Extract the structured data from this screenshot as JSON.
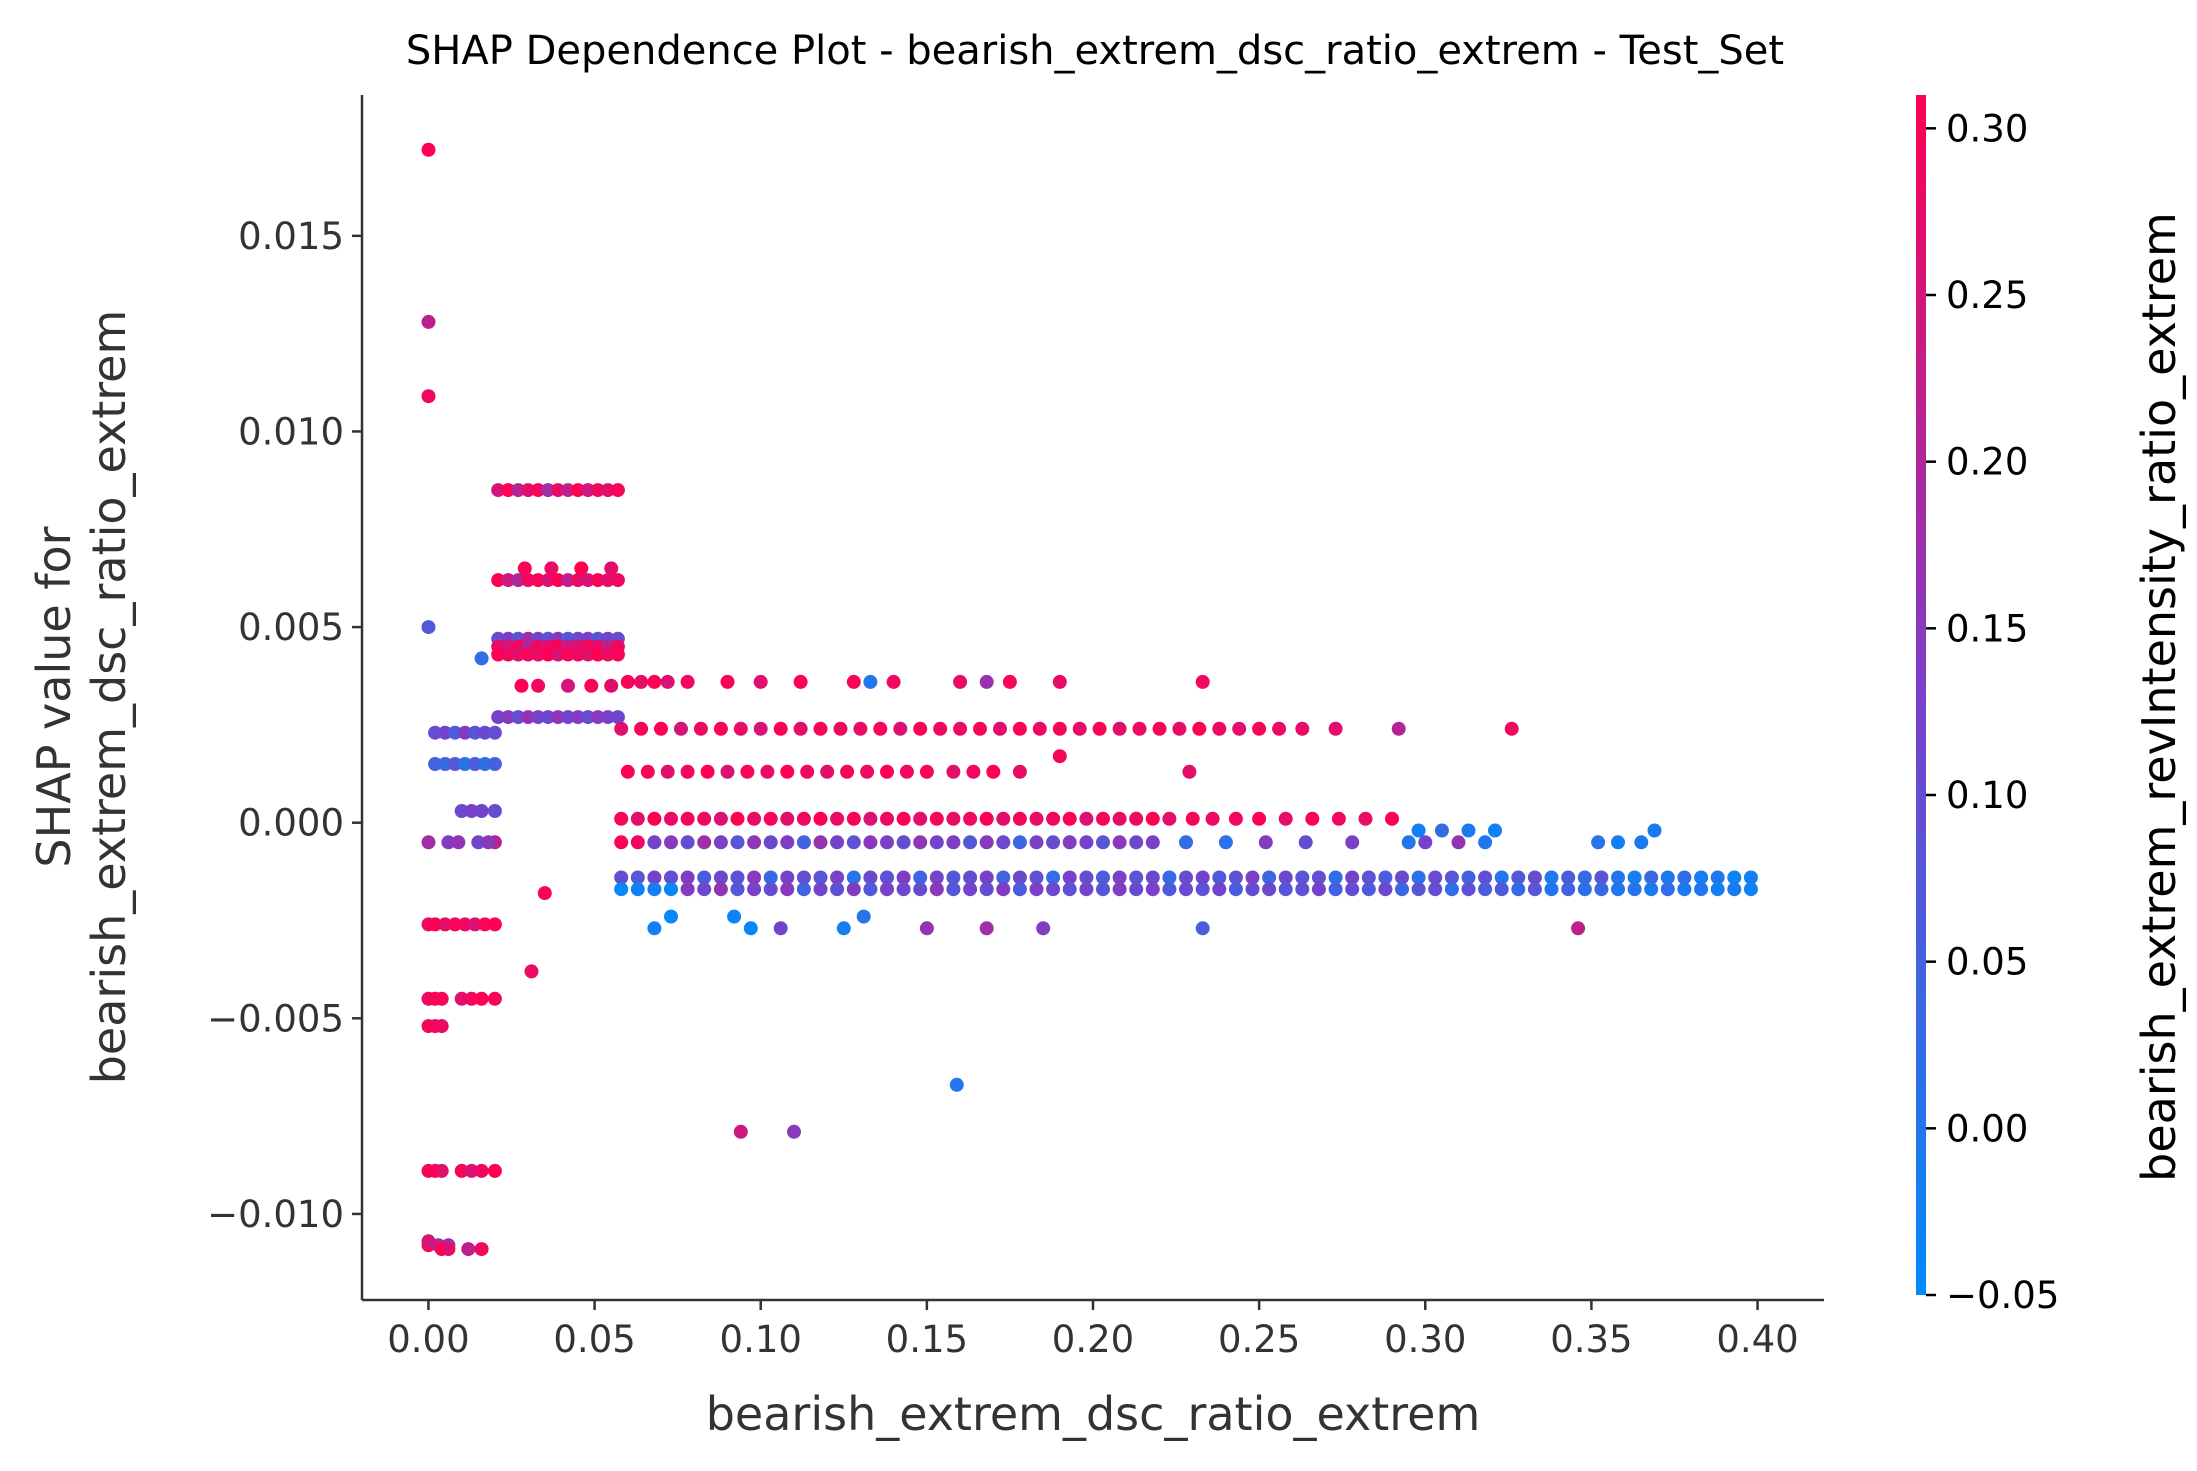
{
  "chart_data": {
    "type": "scatter",
    "title": "SHAP Dependence Plot - bearish_extrem_dsc_ratio_extrem - Test_Set",
    "xlabel": "bearish_extrem_dsc_ratio_extrem",
    "ylabel": [
      "SHAP value for",
      "bearish_extrem_dsc_ratio_extrem"
    ],
    "colorbar_label": "bearish_extrem_revIntensity_ratio_extrem",
    "xlim": [
      -0.02,
      0.42
    ],
    "ylim": [
      -0.0122,
      0.0186
    ],
    "clim": [
      -0.05,
      0.31
    ],
    "xticks": [
      0.0,
      0.05,
      0.1,
      0.15,
      0.2,
      0.25,
      0.3,
      0.35,
      0.4
    ],
    "xtick_labels": [
      "0.00",
      "0.05",
      "0.10",
      "0.15",
      "0.20",
      "0.25",
      "0.30",
      "0.35",
      "0.40"
    ],
    "yticks": [
      -0.01,
      -0.005,
      0.0,
      0.005,
      0.01,
      0.015
    ],
    "ytick_labels": [
      "−0.010",
      "−0.005",
      "0.000",
      "0.005",
      "0.010",
      "0.015"
    ],
    "cticks": [
      -0.05,
      0.0,
      0.05,
      0.1,
      0.15,
      0.2,
      0.25,
      0.3
    ],
    "ctick_labels": [
      "−0.05",
      "0.00",
      "0.05",
      "0.10",
      "0.15",
      "0.20",
      "0.25",
      "0.30"
    ],
    "colormap": [
      "#008bfb",
      "#ff0052"
    ],
    "grid": false,
    "points_x": [
      0.0,
      0.0,
      0.0,
      0.0,
      0.0,
      0.003,
      0.0,
      0.006,
      0.002,
      0.005,
      0.008,
      0.011,
      0.014,
      0.017,
      0.02,
      0.002,
      0.005,
      0.008,
      0.011,
      0.014,
      0.017,
      0.02,
      0.0,
      0.002,
      0.005,
      0.008,
      0.011,
      0.014,
      0.017,
      0.02,
      0.0,
      0.002,
      0.004,
      0.01,
      0.013,
      0.016,
      0.02,
      0.0,
      0.002,
      0.004,
      0.01,
      0.013,
      0.016,
      0.02,
      0.0,
      0.002,
      0.004,
      0.01,
      0.013,
      0.016,
      0.02,
      0.0,
      0.006,
      0.02,
      0.009,
      0.015,
      0.018,
      0.004,
      0.006,
      0.012,
      0.016,
      0.035,
      0.031,
      0.016,
      0.021,
      0.024,
      0.027,
      0.03,
      0.033,
      0.036,
      0.039,
      0.042,
      0.045,
      0.048,
      0.051,
      0.054,
      0.057,
      0.021,
      0.024,
      0.027,
      0.03,
      0.033,
      0.036,
      0.039,
      0.042,
      0.045,
      0.048,
      0.051,
      0.054,
      0.057,
      0.021,
      0.024,
      0.027,
      0.03,
      0.033,
      0.036,
      0.039,
      0.042,
      0.045,
      0.048,
      0.051,
      0.054,
      0.057,
      0.021,
      0.024,
      0.027,
      0.03,
      0.033,
      0.036,
      0.039,
      0.042,
      0.045,
      0.048,
      0.051,
      0.054,
      0.057,
      0.021,
      0.024,
      0.027,
      0.03,
      0.033,
      0.036,
      0.039,
      0.042,
      0.045,
      0.048,
      0.051,
      0.054,
      0.057,
      0.021,
      0.024,
      0.027,
      0.03,
      0.033,
      0.036,
      0.039,
      0.042,
      0.045,
      0.048,
      0.051,
      0.054,
      0.057,
      0.029,
      0.037,
      0.046,
      0.055,
      0.028,
      0.033,
      0.042,
      0.049,
      0.055,
      0.06,
      0.064,
      0.068,
      0.072,
      0.078,
      0.09,
      0.1,
      0.112,
      0.128,
      0.133,
      0.14,
      0.16,
      0.168,
      0.175,
      0.19,
      0.233,
      0.058,
      0.064,
      0.07,
      0.076,
      0.082,
      0.088,
      0.094,
      0.1,
      0.106,
      0.112,
      0.118,
      0.124,
      0.13,
      0.136,
      0.142,
      0.148,
      0.154,
      0.16,
      0.166,
      0.172,
      0.178,
      0.184,
      0.19,
      0.196,
      0.202,
      0.208,
      0.214,
      0.22,
      0.226,
      0.232,
      0.238,
      0.244,
      0.25,
      0.256,
      0.263,
      0.273,
      0.292,
      0.326,
      0.06,
      0.066,
      0.072,
      0.078,
      0.084,
      0.09,
      0.096,
      0.102,
      0.108,
      0.114,
      0.12,
      0.126,
      0.132,
      0.138,
      0.144,
      0.15,
      0.158,
      0.164,
      0.17,
      0.178,
      0.19,
      0.229,
      0.058,
      0.063,
      0.068,
      0.073,
      0.078,
      0.083,
      0.088,
      0.093,
      0.098,
      0.103,
      0.108,
      0.113,
      0.118,
      0.123,
      0.128,
      0.133,
      0.138,
      0.143,
      0.148,
      0.153,
      0.158,
      0.163,
      0.168,
      0.173,
      0.178,
      0.183,
      0.188,
      0.193,
      0.198,
      0.203,
      0.208,
      0.213,
      0.218,
      0.223,
      0.23,
      0.236,
      0.243,
      0.25,
      0.258,
      0.266,
      0.274,
      0.282,
      0.29,
      0.058,
      0.063,
      0.068,
      0.073,
      0.078,
      0.083,
      0.088,
      0.093,
      0.098,
      0.103,
      0.108,
      0.113,
      0.118,
      0.123,
      0.128,
      0.133,
      0.138,
      0.143,
      0.148,
      0.153,
      0.158,
      0.163,
      0.168,
      0.173,
      0.178,
      0.183,
      0.188,
      0.193,
      0.198,
      0.203,
      0.208,
      0.213,
      0.218,
      0.228,
      0.24,
      0.252,
      0.264,
      0.278,
      0.295,
      0.3,
      0.31,
      0.318,
      0.352,
      0.358,
      0.365,
      0.298,
      0.305,
      0.313,
      0.321,
      0.369,
      0.058,
      0.063,
      0.068,
      0.073,
      0.078,
      0.083,
      0.088,
      0.093,
      0.098,
      0.103,
      0.108,
      0.113,
      0.118,
      0.123,
      0.128,
      0.133,
      0.138,
      0.143,
      0.148,
      0.153,
      0.158,
      0.163,
      0.168,
      0.173,
      0.178,
      0.183,
      0.188,
      0.193,
      0.198,
      0.203,
      0.208,
      0.213,
      0.218,
      0.223,
      0.228,
      0.233,
      0.238,
      0.243,
      0.248,
      0.253,
      0.258,
      0.263,
      0.268,
      0.273,
      0.278,
      0.283,
      0.288,
      0.293,
      0.298,
      0.303,
      0.308,
      0.313,
      0.318,
      0.323,
      0.328,
      0.333,
      0.338,
      0.343,
      0.348,
      0.353,
      0.358,
      0.363,
      0.368,
      0.373,
      0.378,
      0.383,
      0.388,
      0.393,
      0.398,
      0.058,
      0.063,
      0.068,
      0.073,
      0.078,
      0.083,
      0.088,
      0.093,
      0.098,
      0.103,
      0.108,
      0.113,
      0.118,
      0.123,
      0.128,
      0.133,
      0.138,
      0.143,
      0.148,
      0.153,
      0.158,
      0.163,
      0.168,
      0.173,
      0.178,
      0.183,
      0.188,
      0.193,
      0.198,
      0.203,
      0.208,
      0.213,
      0.218,
      0.223,
      0.228,
      0.233,
      0.238,
      0.243,
      0.248,
      0.253,
      0.258,
      0.263,
      0.268,
      0.273,
      0.278,
      0.283,
      0.288,
      0.293,
      0.298,
      0.303,
      0.308,
      0.313,
      0.318,
      0.323,
      0.328,
      0.333,
      0.338,
      0.343,
      0.348,
      0.353,
      0.358,
      0.363,
      0.368,
      0.373,
      0.378,
      0.383,
      0.388,
      0.393,
      0.398,
      0.068,
      0.073,
      0.092,
      0.097,
      0.106,
      0.125,
      0.131,
      0.15,
      0.168,
      0.185,
      0.233,
      0.346,
      0.159,
      0.094,
      0.11
    ],
    "points_y": [
      0.0172,
      0.0128,
      0.0109,
      0.005,
      -0.0108,
      -0.0108,
      -0.0107,
      -0.0108,
      0.0023,
      0.0023,
      0.0023,
      0.0023,
      0.0023,
      0.0023,
      0.0023,
      0.0015,
      0.0015,
      0.0015,
      0.0015,
      0.0015,
      0.0015,
      0.0015,
      -0.0026,
      -0.0026,
      -0.0026,
      -0.0026,
      -0.0026,
      -0.0026,
      -0.0026,
      -0.0026,
      -0.0045,
      -0.0045,
      -0.0045,
      -0.0045,
      -0.0045,
      -0.0045,
      -0.0045,
      -0.0089,
      -0.0089,
      -0.0089,
      -0.0089,
      -0.0089,
      -0.0089,
      -0.0089,
      -0.0052,
      -0.0052,
      -0.0052,
      0.0003,
      0.0003,
      0.0003,
      0.0003,
      -0.0005,
      -0.0005,
      -0.0005,
      -0.0005,
      -0.0005,
      -0.0005,
      -0.0109,
      -0.0109,
      -0.0109,
      -0.0109,
      -0.0018,
      -0.0038,
      0.0042,
      0.0085,
      0.0085,
      0.0085,
      0.0085,
      0.0085,
      0.0085,
      0.0085,
      0.0085,
      0.0085,
      0.0085,
      0.0085,
      0.0085,
      0.0085,
      0.0062,
      0.0062,
      0.0062,
      0.0062,
      0.0062,
      0.0062,
      0.0062,
      0.0062,
      0.0062,
      0.0062,
      0.0062,
      0.0062,
      0.0062,
      0.0047,
      0.0047,
      0.0047,
      0.0047,
      0.0047,
      0.0047,
      0.0047,
      0.0047,
      0.0047,
      0.0047,
      0.0047,
      0.0047,
      0.0047,
      0.0045,
      0.0045,
      0.0045,
      0.0045,
      0.0045,
      0.0045,
      0.0045,
      0.0045,
      0.0045,
      0.0045,
      0.0045,
      0.0045,
      0.0045,
      0.0043,
      0.0043,
      0.0043,
      0.0043,
      0.0043,
      0.0043,
      0.0043,
      0.0043,
      0.0043,
      0.0043,
      0.0043,
      0.0043,
      0.0043,
      0.0027,
      0.0027,
      0.0027,
      0.0027,
      0.0027,
      0.0027,
      0.0027,
      0.0027,
      0.0027,
      0.0027,
      0.0027,
      0.0027,
      0.0027,
      0.0065,
      0.0065,
      0.0065,
      0.0065,
      0.0035,
      0.0035,
      0.0035,
      0.0035,
      0.0035,
      0.0036,
      0.0036,
      0.0036,
      0.0036,
      0.0036,
      0.0036,
      0.0036,
      0.0036,
      0.0036,
      0.0036,
      0.0036,
      0.0036,
      0.0036,
      0.0036,
      0.0036,
      0.0036,
      0.0024,
      0.0024,
      0.0024,
      0.0024,
      0.0024,
      0.0024,
      0.0024,
      0.0024,
      0.0024,
      0.0024,
      0.0024,
      0.0024,
      0.0024,
      0.0024,
      0.0024,
      0.0024,
      0.0024,
      0.0024,
      0.0024,
      0.0024,
      0.0024,
      0.0024,
      0.0024,
      0.0024,
      0.0024,
      0.0024,
      0.0024,
      0.0024,
      0.0024,
      0.0024,
      0.0024,
      0.0024,
      0.0024,
      0.0024,
      0.0024,
      0.0024,
      0.0024,
      0.0024,
      0.0013,
      0.0013,
      0.0013,
      0.0013,
      0.0013,
      0.0013,
      0.0013,
      0.0013,
      0.0013,
      0.0013,
      0.0013,
      0.0013,
      0.0013,
      0.0013,
      0.0013,
      0.0013,
      0.0013,
      0.0013,
      0.0013,
      0.0013,
      0.0017,
      0.0013,
      0.0001,
      0.0001,
      0.0001,
      0.0001,
      0.0001,
      0.0001,
      0.0001,
      0.0001,
      0.0001,
      0.0001,
      0.0001,
      0.0001,
      0.0001,
      0.0001,
      0.0001,
      0.0001,
      0.0001,
      0.0001,
      0.0001,
      0.0001,
      0.0001,
      0.0001,
      0.0001,
      0.0001,
      0.0001,
      0.0001,
      0.0001,
      0.0001,
      0.0001,
      0.0001,
      0.0001,
      0.0001,
      0.0001,
      0.0001,
      0.0001,
      0.0001,
      0.0001,
      0.0001,
      0.0001,
      0.0001,
      0.0001,
      0.0001,
      0.0001,
      -0.0005,
      -0.0005,
      -0.0005,
      -0.0005,
      -0.0005,
      -0.0005,
      -0.0005,
      -0.0005,
      -0.0005,
      -0.0005,
      -0.0005,
      -0.0005,
      -0.0005,
      -0.0005,
      -0.0005,
      -0.0005,
      -0.0005,
      -0.0005,
      -0.0005,
      -0.0005,
      -0.0005,
      -0.0005,
      -0.0005,
      -0.0005,
      -0.0005,
      -0.0005,
      -0.0005,
      -0.0005,
      -0.0005,
      -0.0005,
      -0.0005,
      -0.0005,
      -0.0005,
      -0.0005,
      -0.0005,
      -0.0005,
      -0.0005,
      -0.0005,
      -0.0005,
      -0.0005,
      -0.0005,
      -0.0005,
      -0.0005,
      -0.0005,
      -0.0005,
      -0.0002,
      -0.0002,
      -0.0002,
      -0.0002,
      -0.0002,
      -0.0014,
      -0.0014,
      -0.0014,
      -0.0014,
      -0.0014,
      -0.0014,
      -0.0014,
      -0.0014,
      -0.0014,
      -0.0014,
      -0.0014,
      -0.0014,
      -0.0014,
      -0.0014,
      -0.0014,
      -0.0014,
      -0.0014,
      -0.0014,
      -0.0014,
      -0.0014,
      -0.0014,
      -0.0014,
      -0.0014,
      -0.0014,
      -0.0014,
      -0.0014,
      -0.0014,
      -0.0014,
      -0.0014,
      -0.0014,
      -0.0014,
      -0.0014,
      -0.0014,
      -0.0014,
      -0.0014,
      -0.0014,
      -0.0014,
      -0.0014,
      -0.0014,
      -0.0014,
      -0.0014,
      -0.0014,
      -0.0014,
      -0.0014,
      -0.0014,
      -0.0014,
      -0.0014,
      -0.0014,
      -0.0014,
      -0.0014,
      -0.0014,
      -0.0014,
      -0.0014,
      -0.0014,
      -0.0014,
      -0.0014,
      -0.0014,
      -0.0014,
      -0.0014,
      -0.0014,
      -0.0014,
      -0.0014,
      -0.0014,
      -0.0014,
      -0.0014,
      -0.0014,
      -0.0014,
      -0.0014,
      -0.0014,
      -0.0017,
      -0.0017,
      -0.0017,
      -0.0017,
      -0.0017,
      -0.0017,
      -0.0017,
      -0.0017,
      -0.0017,
      -0.0017,
      -0.0017,
      -0.0017,
      -0.0017,
      -0.0017,
      -0.0017,
      -0.0017,
      -0.0017,
      -0.0017,
      -0.0017,
      -0.0017,
      -0.0017,
      -0.0017,
      -0.0017,
      -0.0017,
      -0.0017,
      -0.0017,
      -0.0017,
      -0.0017,
      -0.0017,
      -0.0017,
      -0.0017,
      -0.0017,
      -0.0017,
      -0.0017,
      -0.0017,
      -0.0017,
      -0.0017,
      -0.0017,
      -0.0017,
      -0.0017,
      -0.0017,
      -0.0017,
      -0.0017,
      -0.0017,
      -0.0017,
      -0.0017,
      -0.0017,
      -0.0017,
      -0.0017,
      -0.0017,
      -0.0017,
      -0.0017,
      -0.0017,
      -0.0017,
      -0.0017,
      -0.0017,
      -0.0017,
      -0.0017,
      -0.0017,
      -0.0017,
      -0.0017,
      -0.0017,
      -0.0017,
      -0.0017,
      -0.0017,
      -0.0017,
      -0.0017,
      -0.0017,
      -0.0017,
      -0.0027,
      -0.0024,
      -0.0024,
      -0.0027,
      -0.0027,
      -0.0027,
      -0.0024,
      -0.0027,
      -0.0027,
      -0.0027,
      -0.0027,
      -0.0027,
      -0.0067,
      -0.0079,
      -0.0079
    ],
    "points_c": [
      0.31,
      0.22,
      0.29,
      0.07,
      0.3,
      0.2,
      0.25,
      0.18,
      0.1,
      0.12,
      0.06,
      0.14,
      0.08,
      0.11,
      0.1,
      0.05,
      0.03,
      0.08,
      0.01,
      0.06,
      0.02,
      0.05,
      0.28,
      0.31,
      0.27,
      0.3,
      0.29,
      0.26,
      0.3,
      0.31,
      0.28,
      0.31,
      0.3,
      0.27,
      0.29,
      0.31,
      0.3,
      0.29,
      0.31,
      0.27,
      0.3,
      0.26,
      0.29,
      0.31,
      0.29,
      0.3,
      0.28,
      0.11,
      0.13,
      0.12,
      0.1,
      0.18,
      0.14,
      0.21,
      0.16,
      0.12,
      0.15,
      0.31,
      0.27,
      0.22,
      0.29,
      0.3,
      0.28,
      0.02,
      0.25,
      0.31,
      0.21,
      0.27,
      0.3,
      0.18,
      0.28,
      0.22,
      0.31,
      0.24,
      0.29,
      0.27,
      0.3,
      0.31,
      0.24,
      0.2,
      0.29,
      0.3,
      0.26,
      0.31,
      0.22,
      0.28,
      0.25,
      0.3,
      0.27,
      0.29,
      0.1,
      0.14,
      0.08,
      0.18,
      0.12,
      0.09,
      0.15,
      0.07,
      0.11,
      0.13,
      0.08,
      0.12,
      0.1,
      0.28,
      0.25,
      0.3,
      0.21,
      0.29,
      0.27,
      0.31,
      0.24,
      0.26,
      0.3,
      0.28,
      0.22,
      0.29,
      0.31,
      0.29,
      0.27,
      0.3,
      0.28,
      0.31,
      0.26,
      0.3,
      0.29,
      0.27,
      0.31,
      0.28,
      0.3,
      0.12,
      0.15,
      0.1,
      0.17,
      0.13,
      0.11,
      0.16,
      0.12,
      0.14,
      0.1,
      0.15,
      0.13,
      0.11,
      0.3,
      0.28,
      0.31,
      0.27,
      0.31,
      0.29,
      0.25,
      0.3,
      0.27,
      0.3,
      0.28,
      0.31,
      0.26,
      0.29,
      0.3,
      0.27,
      0.31,
      0.3,
      0.0,
      0.29,
      0.28,
      0.17,
      0.3,
      0.28,
      0.29,
      0.27,
      0.3,
      0.31,
      0.25,
      0.29,
      0.3,
      0.28,
      0.26,
      0.31,
      0.27,
      0.3,
      0.29,
      0.28,
      0.3,
      0.26,
      0.31,
      0.29,
      0.28,
      0.3,
      0.27,
      0.31,
      0.29,
      0.3,
      0.28,
      0.31,
      0.27,
      0.29,
      0.3,
      0.28,
      0.31,
      0.29,
      0.27,
      0.3,
      0.29,
      0.28,
      0.27,
      0.21,
      0.29,
      0.31,
      0.3,
      0.27,
      0.29,
      0.31,
      0.26,
      0.3,
      0.28,
      0.31,
      0.29,
      0.27,
      0.3,
      0.28,
      0.31,
      0.29,
      0.3,
      0.27,
      0.29,
      0.31,
      0.28,
      0.3,
      0.27,
      0.3,
      0.27,
      0.31,
      0.28,
      0.3,
      0.29,
      0.26,
      0.31,
      0.28,
      0.3,
      0.27,
      0.29,
      0.31,
      0.28,
      0.3,
      0.26,
      0.29,
      0.31,
      0.27,
      0.3,
      0.28,
      0.29,
      0.31,
      0.27,
      0.3,
      0.28,
      0.29,
      0.31,
      0.26,
      0.3,
      0.28,
      0.29,
      0.31,
      0.27,
      0.3,
      0.28,
      0.29,
      0.31,
      0.27,
      0.3,
      0.29,
      0.28,
      0.31,
      0.3,
      0.29,
      0.12,
      0.15,
      0.1,
      0.18,
      0.13,
      0.08,
      0.16,
      0.11,
      0.14,
      0.05,
      0.17,
      0.12,
      0.09,
      0.15,
      0.13,
      0.1,
      0.16,
      0.12,
      0.14,
      0.07,
      0.15,
      0.11,
      0.04,
      0.13,
      0.1,
      0.14,
      0.12,
      0.08,
      0.15,
      0.11,
      0.13,
      0.02,
      0.01,
      0.14,
      0.1,
      0.13,
      0.0,
      0.12,
      0.16,
      0.0,
      0.01,
      -0.02,
      -0.01,
      -0.02,
      0.03,
      -0.01,
      -0.02,
      -0.01,
      0.1,
      0.08,
      0.12,
      0.1,
      0.14,
      0.06,
      0.11,
      0.09,
      0.15,
      0.03,
      0.12,
      0.1,
      0.08,
      0.13,
      0.01,
      0.11,
      0.09,
      0.14,
      0.04,
      0.12,
      0.07,
      0.1,
      0.13,
      0.05,
      0.11,
      0.09,
      0.02,
      0.12,
      0.1,
      0.06,
      0.13,
      0.08,
      0.11,
      0.03,
      0.1,
      0.12,
      0.07,
      0.09,
      0.13,
      0.04,
      0.11,
      0.08,
      0.1,
      0.02,
      0.12,
      0.09,
      0.06,
      0.11,
      0.01,
      0.1,
      0.08,
      0.05,
      0.09,
      0.0,
      0.07,
      0.1,
      -0.01,
      0.06,
      0.03,
      0.08,
      0.0,
      -0.02,
      0.04,
      -0.01,
      0.02,
      -0.02,
      0.0,
      -0.03,
      -0.02,
      -0.04,
      -0.03,
      -0.02,
      -0.04,
      0.14,
      0.11,
      0.16,
      0.08,
      0.13,
      0.1,
      0.15,
      0.05,
      0.12,
      0.09,
      0.14,
      0.07,
      0.13,
      0.11,
      0.1,
      0.15,
      0.08,
      0.12,
      0.1,
      0.14,
      0.06,
      0.13,
      0.11,
      0.09,
      0.12,
      0.08,
      0.14,
      0.1,
      0.13,
      0.07,
      0.11,
      0.09,
      0.12,
      0.06,
      0.1,
      0.11,
      0.08,
      0.09,
      0.12,
      0.05,
      0.1,
      0.07,
      0.11,
      0.04,
      0.08,
      0.1,
      0.02,
      0.09,
      0.06,
      0.07,
      0.03,
      0.08,
      0.0,
      0.05,
      0.02,
      0.04,
      0.0,
      0.01,
      -0.01,
      0.02,
      -0.01,
      0.0,
      -0.02,
      -0.01,
      -0.03,
      -0.02,
      -0.04,
      -0.03,
      -0.04,
      0.12,
      -0.02,
      0.01,
      0.16,
      0.18,
      0.14,
      0.06,
      0.22,
      0.0,
      0.24,
      0.15,
      -0.02,
      0.28,
      0.2,
      0.23
    ]
  }
}
